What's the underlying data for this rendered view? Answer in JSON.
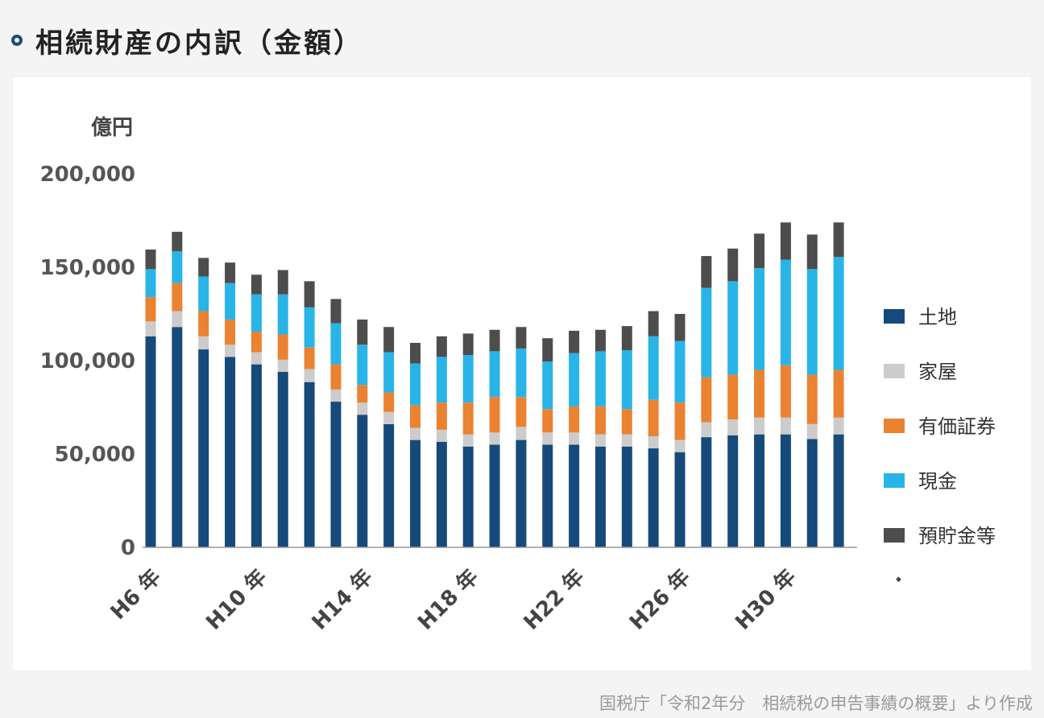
{
  "title": "相続財産の内訳（金額）",
  "source": "国税庁「令和2年分　相続税の申告事績の概要」より作成",
  "colors": {
    "title_dot": "#1d4a7a",
    "土地": "#164a7a",
    "家屋": "#cccccc",
    "有価証券": "#ea8232",
    "現金": "#29b4e8",
    "預貯金等": "#4d4d4d"
  },
  "chart_data": {
    "type": "bar",
    "stacked": true,
    "unit_label": "億円",
    "ylim": [
      0,
      200000
    ],
    "yticks": [
      "0",
      "50,000",
      "100,000",
      "150,000",
      "200,000"
    ],
    "ytick_values": [
      0,
      50000,
      100000,
      150000,
      200000
    ],
    "grid": false,
    "legend_position": "right",
    "categories": [
      "H6 年",
      "",
      "",
      "",
      "H10 年",
      "",
      "",
      "",
      "H14 年",
      "",
      "",
      "",
      "H18 年",
      "",
      "",
      "",
      "H22 年",
      "",
      "",
      "",
      "H26 年",
      "",
      "",
      "",
      "H30 年",
      "",
      ""
    ],
    "xtick_labels": [
      "H6 年",
      "H10 年",
      "H14 年",
      "H18 年",
      "H22 年",
      "H26 年",
      "H30 年",
      "."
    ],
    "series": [
      {
        "name": "土地",
        "values": [
          113000,
          118000,
          106000,
          102000,
          98000,
          94000,
          88500,
          78000,
          71000,
          66000,
          57500,
          56500,
          54000,
          55000,
          57500,
          55000,
          55000,
          54000,
          54000,
          53000,
          51000,
          59000,
          60000,
          60500,
          60500,
          58000,
          60500
        ]
      },
      {
        "name": "家屋",
        "values": [
          8000,
          8500,
          7000,
          6500,
          6500,
          6500,
          7000,
          6500,
          6500,
          6500,
          6500,
          6500,
          6500,
          6500,
          7000,
          6500,
          6500,
          6500,
          6500,
          6500,
          6500,
          8000,
          8500,
          9000,
          9000,
          8000,
          9000
        ]
      },
      {
        "name": "有価証券",
        "values": [
          13000,
          15000,
          13500,
          13500,
          11000,
          13500,
          11500,
          13500,
          9500,
          10500,
          12000,
          14500,
          17000,
          19000,
          16000,
          12500,
          14000,
          15000,
          13500,
          19500,
          20000,
          24000,
          24000,
          25500,
          28000,
          26500,
          25500
        ]
      },
      {
        "name": "現金",
        "values": [
          15000,
          17000,
          18500,
          19500,
          20000,
          21500,
          21500,
          22000,
          21500,
          21500,
          22500,
          24500,
          25500,
          24500,
          26000,
          25500,
          28500,
          29500,
          31500,
          34000,
          33000,
          48000,
          50000,
          54500,
          56500,
          56500,
          60500
        ]
      },
      {
        "name": "預貯金等",
        "values": [
          10500,
          10500,
          10000,
          11000,
          10500,
          13000,
          14000,
          13000,
          13500,
          13500,
          11000,
          11000,
          11500,
          11500,
          11500,
          12500,
          12000,
          11500,
          13000,
          13500,
          14500,
          17000,
          17500,
          18500,
          20000,
          18500,
          18500
        ]
      }
    ]
  }
}
